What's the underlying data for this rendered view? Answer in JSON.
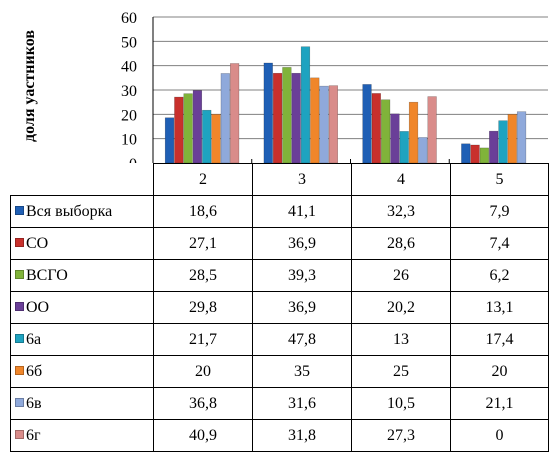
{
  "chart_data": {
    "type": "bar",
    "ylabel": "доля уастников",
    "ylim": [
      0,
      60
    ],
    "yticks": [
      0,
      10,
      20,
      30,
      40,
      50,
      60
    ],
    "grid": true,
    "categories": [
      "2",
      "3",
      "4",
      "5"
    ],
    "series": [
      {
        "name": "Вся выборка",
        "color": "#1F5FB5",
        "values": [
          18.6,
          41.1,
          32.3,
          7.9
        ]
      },
      {
        "name": "СО",
        "color": "#C8302C",
        "values": [
          27.1,
          36.9,
          28.6,
          7.4
        ]
      },
      {
        "name": "ВСГО",
        "color": "#80B33A",
        "values": [
          28.5,
          39.3,
          26,
          6.2
        ]
      },
      {
        "name": "ОО",
        "color": "#6A3F98",
        "values": [
          29.8,
          36.9,
          20.2,
          13.1
        ]
      },
      {
        "name": "6а",
        "color": "#1EA3C0",
        "values": [
          21.7,
          47.8,
          13,
          17.4
        ]
      },
      {
        "name": "6б",
        "color": "#F0862A",
        "values": [
          20,
          35,
          25,
          20
        ]
      },
      {
        "name": "6в",
        "color": "#8FA9DB",
        "values": [
          36.8,
          31.6,
          10.5,
          21.1
        ]
      },
      {
        "name": "6г",
        "color": "#D98C8A",
        "values": [
          40.9,
          31.8,
          27.3,
          0
        ]
      }
    ],
    "table": {
      "rows": [
        [
          "18,6",
          "41,1",
          "32,3",
          "7,9"
        ],
        [
          "27,1",
          "36,9",
          "28,6",
          "7,4"
        ],
        [
          "28,5",
          "39,3",
          "26",
          "6,2"
        ],
        [
          "29,8",
          "36,9",
          "20,2",
          "13,1"
        ],
        [
          "21,7",
          "47,8",
          "13",
          "17,4"
        ],
        [
          "20",
          "35",
          "25",
          "20"
        ],
        [
          "36,8",
          "31,6",
          "10,5",
          "21,1"
        ],
        [
          "40,9",
          "31,8",
          "27,3",
          "0"
        ]
      ]
    }
  }
}
